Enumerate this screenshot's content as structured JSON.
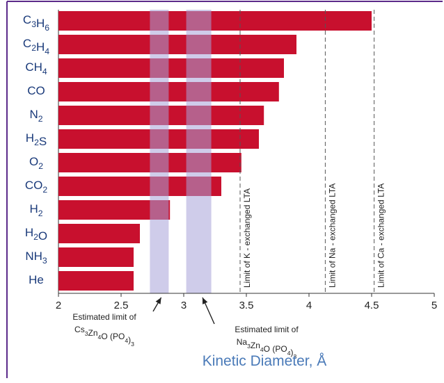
{
  "chart_data": {
    "type": "bar",
    "orientation": "horizontal",
    "xlabel": "Kinetic Diameter, Å",
    "xlim": [
      2,
      5
    ],
    "xticks": [
      2,
      2.5,
      3,
      3.5,
      4,
      4.5,
      5
    ],
    "xtick_labels": [
      "2",
      "2.5",
      "3",
      "3.5",
      "4",
      "4.5",
      "5"
    ],
    "categories": [
      {
        "base": "C",
        "sub": "3",
        "base2": "H",
        "sub2": "6"
      },
      {
        "base": "C",
        "sub": "2",
        "base2": "H",
        "sub2": "4"
      },
      {
        "base": "CH",
        "sub": "4",
        "base2": "",
        "sub2": ""
      },
      {
        "base": "CO",
        "sub": "",
        "base2": "",
        "sub2": ""
      },
      {
        "base": "N",
        "sub": "2",
        "base2": "",
        "sub2": ""
      },
      {
        "base": "H",
        "sub": "2",
        "base2": "S",
        "sub2": ""
      },
      {
        "base": "O",
        "sub": "2",
        "base2": "",
        "sub2": ""
      },
      {
        "base": "CO",
        "sub": "2",
        "base2": "",
        "sub2": ""
      },
      {
        "base": "H",
        "sub": "2",
        "base2": "",
        "sub2": ""
      },
      {
        "base": "H",
        "sub": "2",
        "base2": "O",
        "sub2": ""
      },
      {
        "base": "NH",
        "sub": "3",
        "base2": "",
        "sub2": ""
      },
      {
        "base": "He",
        "sub": "",
        "base2": "",
        "sub2": ""
      }
    ],
    "values": [
      4.5,
      3.9,
      3.8,
      3.76,
      3.64,
      3.6,
      3.46,
      3.3,
      2.89,
      2.65,
      2.6,
      2.6
    ],
    "bar_color": "#c8102e",
    "bands": [
      {
        "x0": 2.73,
        "x1": 2.88,
        "color": "#a7a3d8"
      },
      {
        "x0": 3.02,
        "x1": 3.22,
        "color": "#a7a3d8"
      }
    ],
    "limit_lines": [
      {
        "x": 3.45,
        "label": "Limit of K - exchanged LTA"
      },
      {
        "x": 4.13,
        "label": "Limit of Na - exchanged LTA"
      },
      {
        "x": 4.52,
        "label": "Limit of Ca - exchanged LTA"
      }
    ],
    "annotations": [
      {
        "text": "Estimated limit of",
        "formula_a": "Cs",
        "s1": "3",
        "formula_b": "Zn",
        "s2": "4",
        "formula_c": "O (PO",
        "s3": "4",
        "formula_d": ")",
        "s4": "3",
        "points_to": 2.82
      },
      {
        "text": "Estimated limit of",
        "formula_a": "Na",
        "s1": "3",
        "formula_b": "Zn",
        "s2": "4",
        "formula_c": "O (PO",
        "s3": "4",
        "formula_d": ")",
        "s4": "3",
        "points_to": 3.15
      }
    ],
    "grid": false,
    "legend": "none",
    "frame_color": "#5b2a8a"
  }
}
